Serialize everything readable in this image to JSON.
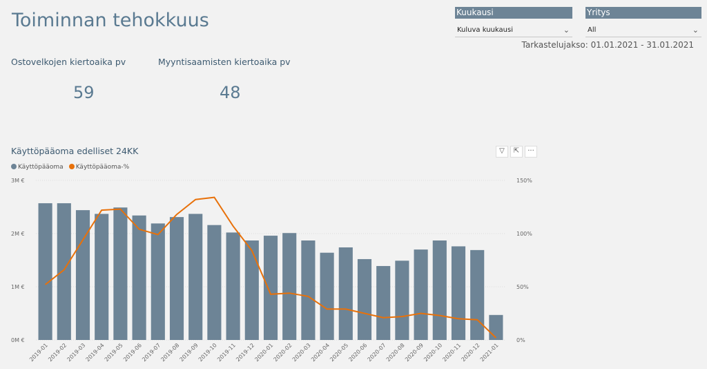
{
  "page": {
    "title": "Toiminnan tehokkuus"
  },
  "slicers": [
    {
      "header": "Kuukausi",
      "value": "Kuluva kuukausi"
    },
    {
      "header": "Yritys",
      "value": "All"
    }
  ],
  "period_text": "Tarkastelujakso: 01.01.2021 - 31.01.2021",
  "kpis": [
    {
      "label": "Ostovelkojen kiertoaika pv",
      "value": "59"
    },
    {
      "label": "Myyntisaamisten kiertoaika pv",
      "value": "48"
    }
  ],
  "colors": {
    "bar": "#6d8496",
    "line": "#e8710a",
    "title": "#5a7a91"
  },
  "chart_data": {
    "type": "bar",
    "title": "Käyttöpääoma edelliset 24KK",
    "legend_position": "top-left",
    "categories": [
      "2019-01",
      "2019-02",
      "2019-03",
      "2019-04",
      "2019-05",
      "2019-06",
      "2019-07",
      "2019-08",
      "2019-09",
      "2019-10",
      "2019-11",
      "2019-12",
      "2020-01",
      "2020-02",
      "2020-03",
      "2020-04",
      "2020-05",
      "2020-06",
      "2020-07",
      "2020-08",
      "2020-09",
      "2020-10",
      "2020-11",
      "2020-12",
      "2021-01"
    ],
    "series": [
      {
        "name": "Käyttöpääoma",
        "axis": "left",
        "type": "bar",
        "values": [
          2.57,
          2.57,
          2.44,
          2.37,
          2.49,
          2.34,
          2.19,
          2.31,
          2.37,
          2.16,
          2.02,
          1.87,
          1.96,
          2.01,
          1.87,
          1.64,
          1.74,
          1.52,
          1.39,
          1.49,
          1.7,
          1.87,
          1.76,
          1.69,
          0.47
        ]
      },
      {
        "name": "Käyttöpääoma-%",
        "axis": "right",
        "type": "line",
        "values": [
          52,
          66,
          94,
          122,
          123,
          104,
          99,
          118,
          132,
          134,
          107,
          84,
          43,
          44,
          41,
          29,
          29,
          25,
          21,
          22,
          25,
          23,
          20,
          19,
          2
        ]
      }
    ],
    "y_left": {
      "ticks": [
        "0M €",
        "1M €",
        "2M €",
        "3M €"
      ],
      "range": [
        0,
        3
      ]
    },
    "y_right": {
      "ticks": [
        "0%",
        "50%",
        "100%",
        "150%"
      ],
      "range": [
        0,
        150
      ]
    },
    "grid": true
  }
}
